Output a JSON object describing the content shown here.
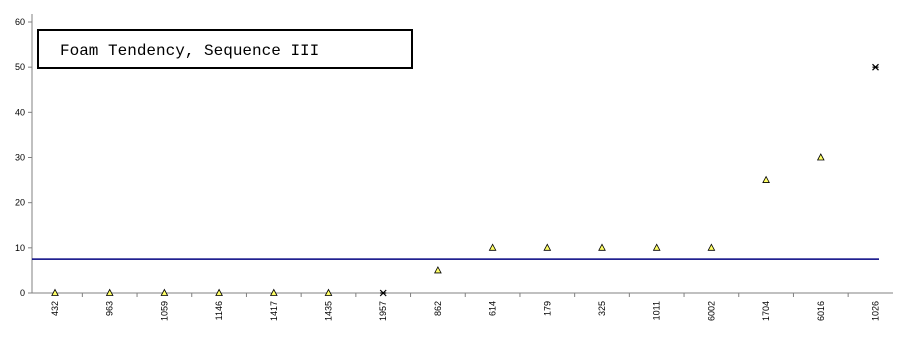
{
  "chart_data": {
    "type": "scatter",
    "title": "Foam Tendency, Sequence III",
    "xlabel": "",
    "ylabel": "",
    "ylim": [
      0,
      60
    ],
    "yticks": [
      0,
      10,
      20,
      30,
      40,
      50,
      60
    ],
    "grid": false,
    "categories": [
      "432",
      "963",
      "1059",
      "1146",
      "1417",
      "1435",
      "1957",
      "862",
      "614",
      "179",
      "325",
      "1011",
      "6002",
      "1704",
      "6016",
      "1026"
    ],
    "series": [
      {
        "marker": "triangle",
        "color": "#ffff66",
        "points": [
          {
            "x": "432",
            "y": 0
          },
          {
            "x": "963",
            "y": 0
          },
          {
            "x": "1059",
            "y": 0
          },
          {
            "x": "1146",
            "y": 0
          },
          {
            "x": "1417",
            "y": 0
          },
          {
            "x": "1435",
            "y": 0
          },
          {
            "x": "862",
            "y": 5
          },
          {
            "x": "614",
            "y": 10
          },
          {
            "x": "179",
            "y": 10
          },
          {
            "x": "325",
            "y": 10
          },
          {
            "x": "1011",
            "y": 10
          },
          {
            "x": "6002",
            "y": 10
          },
          {
            "x": "1704",
            "y": 25
          },
          {
            "x": "6016",
            "y": 30
          }
        ]
      },
      {
        "marker": "x-star",
        "color": "#000000",
        "points": [
          {
            "x": "1957",
            "y": 0
          },
          {
            "x": "1026",
            "y": 50
          }
        ]
      }
    ],
    "reference_line": {
      "y": 7.5,
      "color": "#000080"
    }
  }
}
